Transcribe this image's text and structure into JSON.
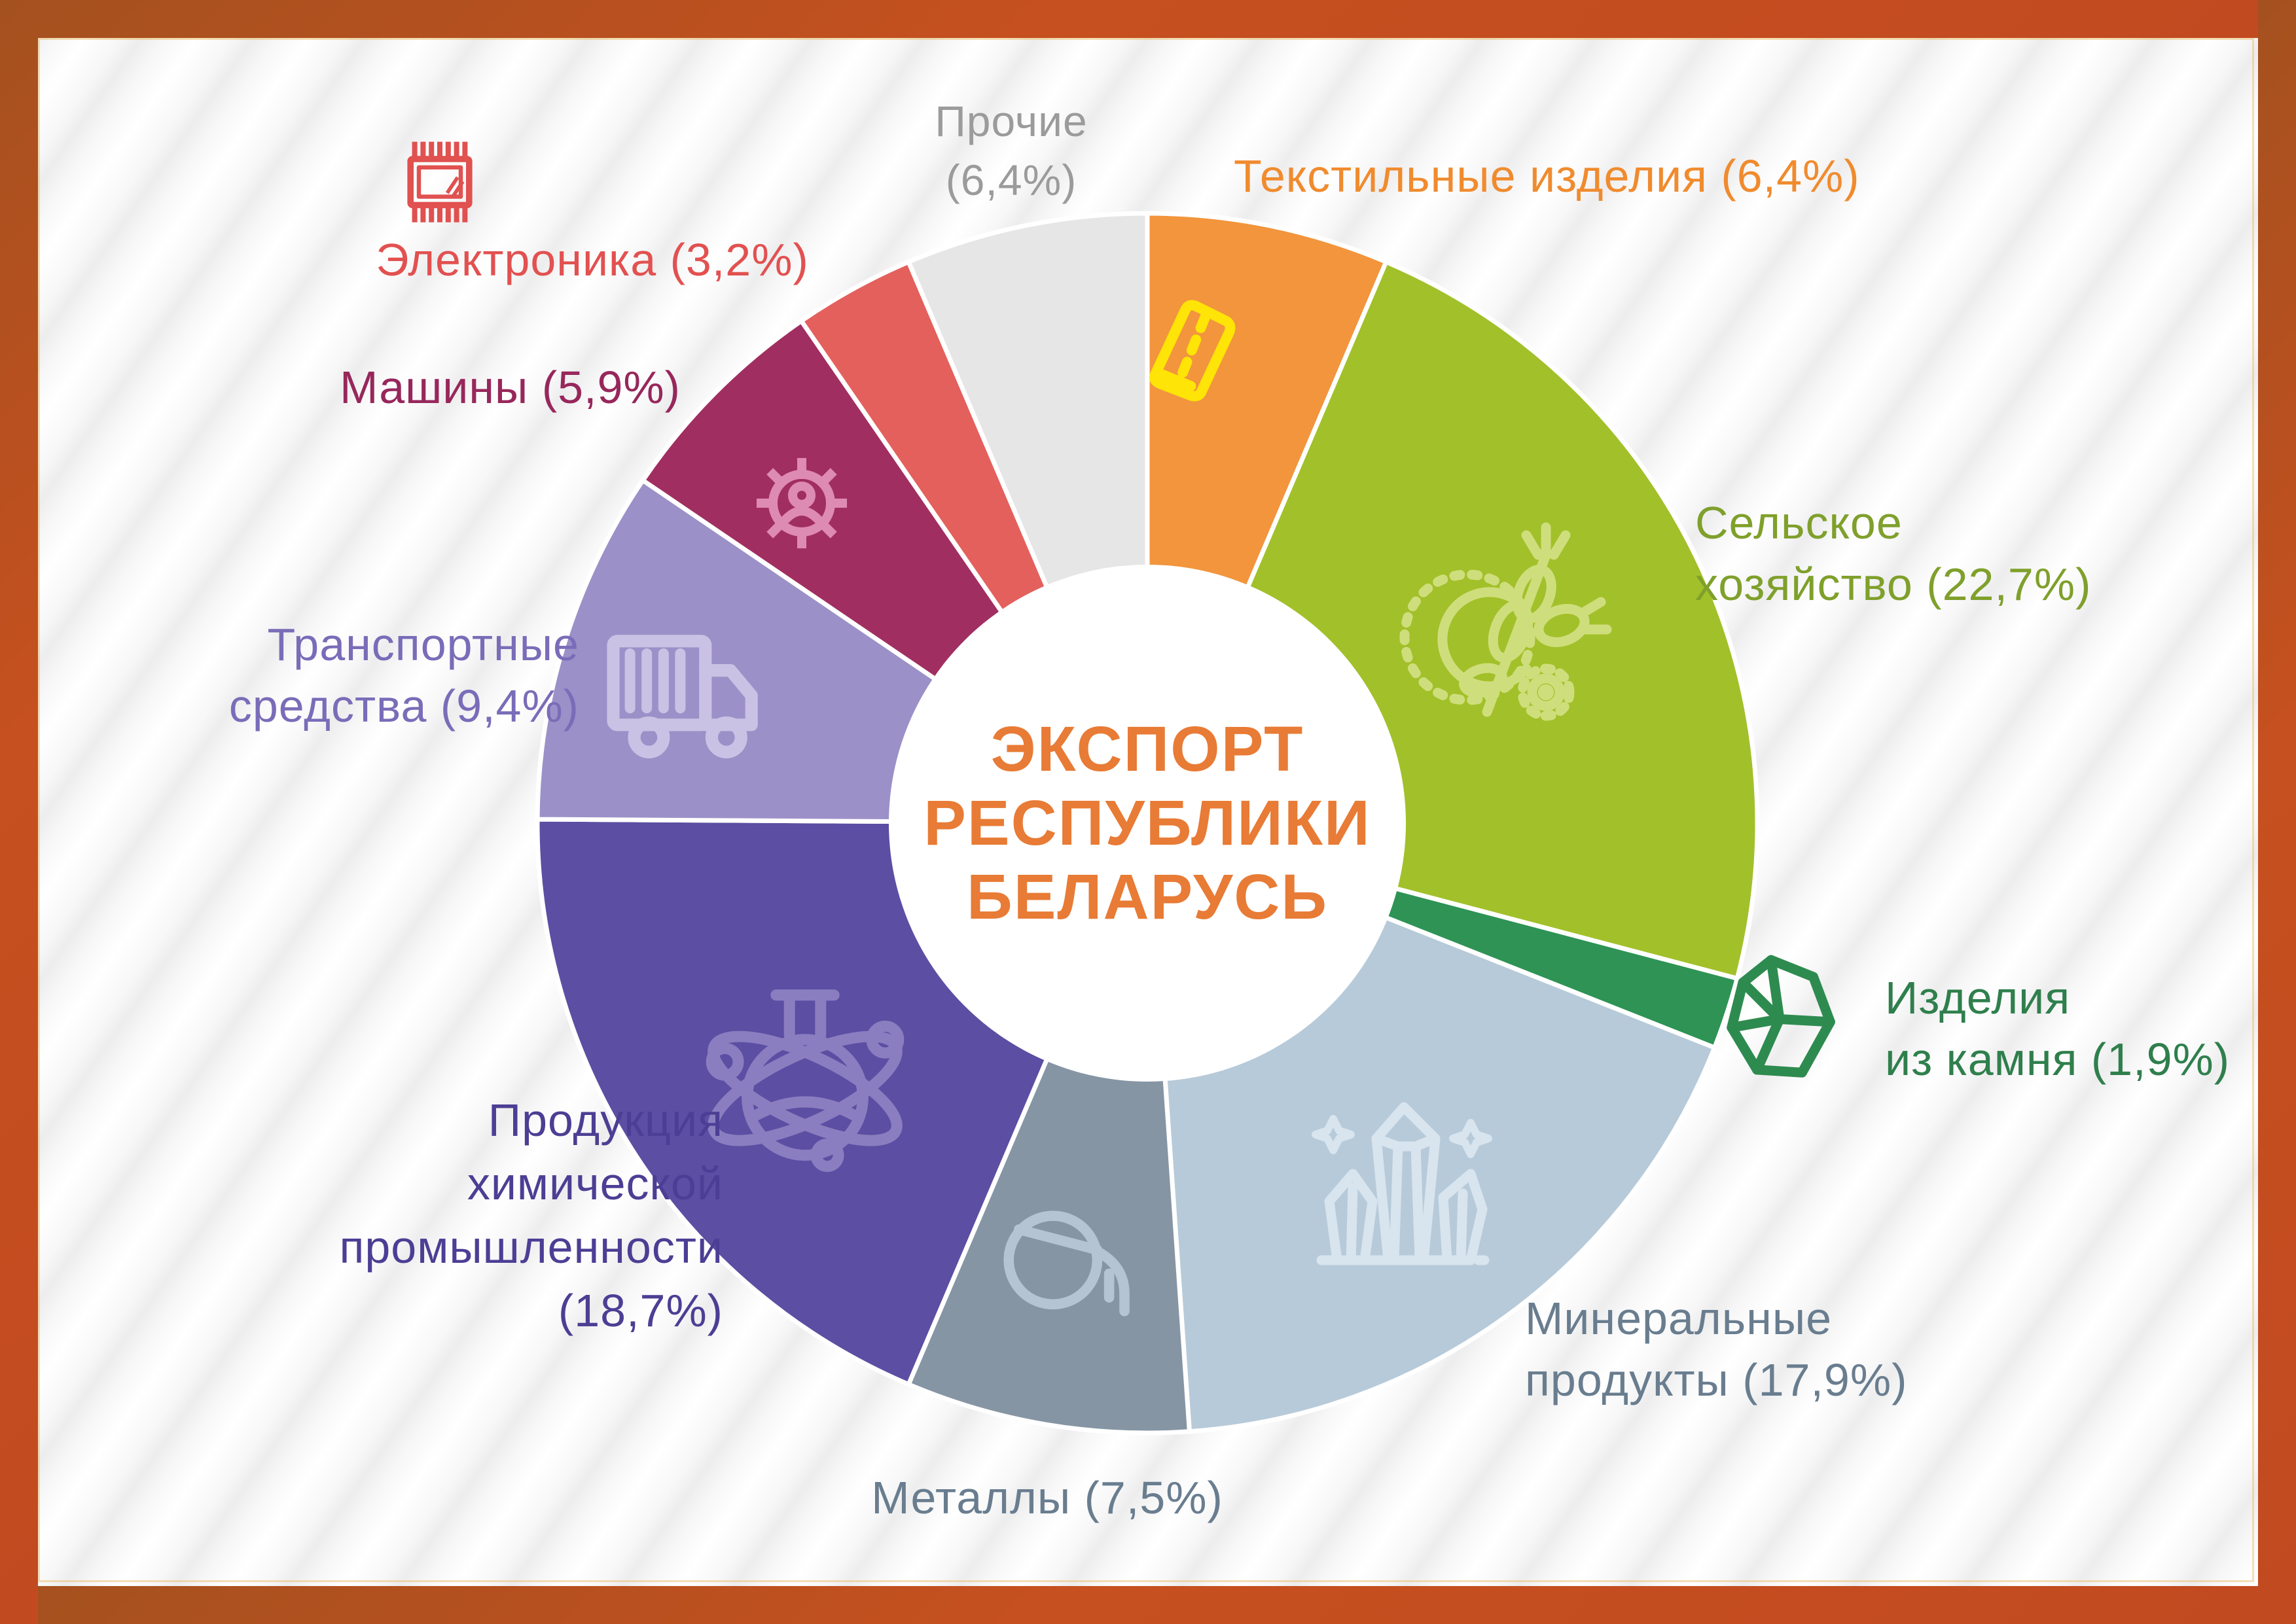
{
  "frame": {
    "border_color": "#c24a20",
    "border_color_dark": "#a4511f",
    "hairline_color": "#e9b95e"
  },
  "background": {
    "base": "#ffffff",
    "stripe": "#ededee"
  },
  "center": {
    "title": "ЭКСПОРТ\nРЕСПУБЛИКИ\nБЕЛАРУСЬ",
    "color": "#E87B35"
  },
  "chart_data": {
    "type": "pie",
    "donut": true,
    "title": "ЭКСПОРТ РЕСПУБЛИКИ БЕЛАРУСЬ",
    "units": "%",
    "direction": "clockwise",
    "start_angle_deg": 0,
    "legend_position": "around",
    "slices": [
      {
        "label": "Текстильные изделия",
        "value_pct": 6.4,
        "display": "Текстильные изделия (6,4%)",
        "color": "#F2953C",
        "label_color": "#F08B2E",
        "icon": "fabric-roll-icon",
        "icon_color": "#FFE408"
      },
      {
        "label": "Сельское хозяйство",
        "value_pct": 22.7,
        "display": "Сельское\nхозяйство (22,7%)",
        "color": "#A2C02A",
        "label_color": "#7FA02B",
        "icon": "wheat-icon",
        "icon_color": "#CFDE7C"
      },
      {
        "label": "Изделия из камня",
        "value_pct": 1.9,
        "display": "Изделия\nиз камня (1,9%)",
        "color": "#2E9355",
        "label_color": "#2F7F4C",
        "icon": "gem-icon",
        "icon_color": "#2E8B4F"
      },
      {
        "label": "Минеральные продукты",
        "value_pct": 17.9,
        "display": "Минеральные\nпродукты (17,9%)",
        "color": "#B7CAD9",
        "label_color": "#697D8F",
        "icon": "crystals-icon",
        "icon_color": "#D8E4EE"
      },
      {
        "label": "Металлы",
        "value_pct": 7.5,
        "display": "Металлы (7,5%)",
        "color": "#8695A4",
        "label_color": "#697D8F",
        "icon": "ladle-icon",
        "icon_color": "#B4C4D2"
      },
      {
        "label": "Продукция химической промышленности",
        "value_pct": 18.7,
        "display": "Продукция\nхимической\nпромышленности\n(18,7%)",
        "color": "#5C4EA2",
        "label_color": "#4C3E94",
        "icon": "atom-flask-icon",
        "icon_color": "#8A7EC0"
      },
      {
        "label": "Транспортные средства",
        "value_pct": 9.4,
        "display": "Транспортные\nсредства (9,4%)",
        "color": "#9C90C8",
        "label_color": "#7A6CB8",
        "icon": "truck-icon",
        "icon_color": "#C9C2E4"
      },
      {
        "label": "Машины",
        "value_pct": 5.9,
        "display": "Машины (5,9%)",
        "color": "#A12E60",
        "label_color": "#97275B",
        "icon": "gear-person-icon",
        "icon_color": "#DE8BB4"
      },
      {
        "label": "Электроника",
        "value_pct": 3.2,
        "display": "Электроника (3,2%)",
        "color": "#E4605C",
        "label_color": "#E25150",
        "icon": "chip-icon",
        "icon_color": "#E0514F"
      },
      {
        "label": "Прочие",
        "value_pct": 6.4,
        "display": "Прочие\n(6,4%)",
        "color": "#E6E6E6",
        "label_color": "#9B9B9B",
        "icon": null,
        "icon_color": null
      }
    ]
  }
}
